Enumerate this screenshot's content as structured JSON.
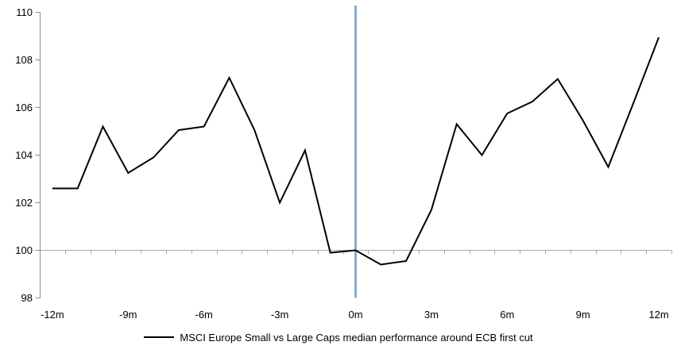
{
  "chart_data": {
    "type": "line",
    "title": "",
    "xlabel": "",
    "ylabel": "",
    "x": [
      -12,
      -11,
      -10,
      -9,
      -8,
      -7,
      -6,
      -5,
      -4,
      -3,
      -2,
      -1,
      0,
      1,
      2,
      3,
      4,
      5,
      6,
      7,
      8,
      9,
      10,
      11,
      12
    ],
    "series": [
      {
        "name": "MSCI Europe Small vs Large Caps median performance around ECB first cut",
        "color": "#000000",
        "values": [
          102.6,
          102.6,
          105.2,
          103.25,
          103.9,
          105.05,
          105.2,
          107.25,
          105.05,
          102.0,
          104.2,
          99.9,
          100.0,
          99.4,
          99.55,
          101.7,
          105.3,
          104.0,
          105.75,
          106.25,
          107.2,
          105.45,
          103.5,
          106.2,
          108.95
        ]
      }
    ],
    "x_tick_months": [
      -12,
      -9,
      -6,
      -3,
      0,
      3,
      6,
      9,
      12
    ],
    "x_tick_labels": [
      "-12m",
      "-9m",
      "-6m",
      "-3m",
      "0m",
      "3m",
      "6m",
      "9m",
      "12m"
    ],
    "y_ticks": [
      110,
      108,
      106,
      104,
      102,
      100,
      98
    ],
    "ylim": [
      98,
      110
    ],
    "baseline_value": 100,
    "event_line": {
      "x": 0,
      "color": "#6E9DC9"
    },
    "axis_color": "#8C8C8C",
    "gridline_color": "#A9A9A9",
    "legend_position": "bottom-center",
    "grid": "horizontal line at 100 only"
  }
}
